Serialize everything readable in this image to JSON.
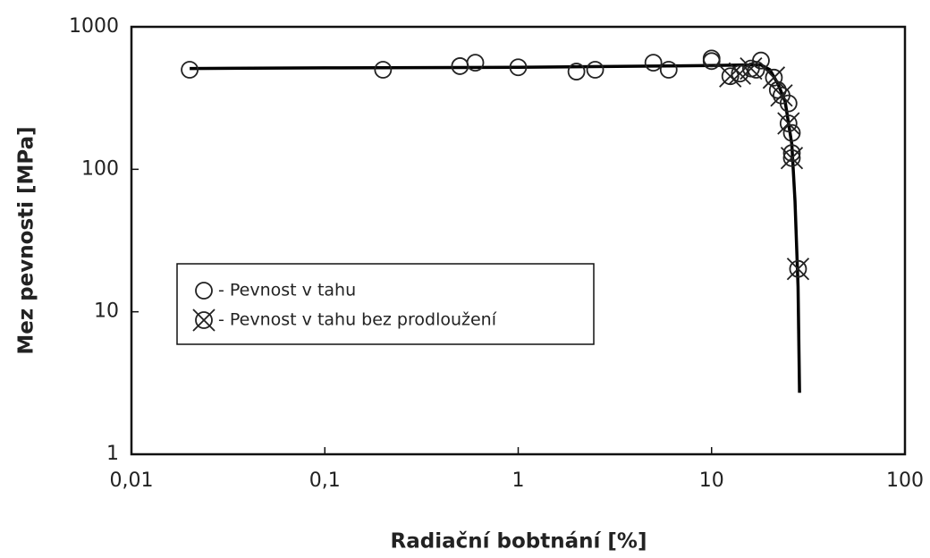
{
  "chart_data": {
    "type": "scatter",
    "xlabel": "Radiační bobtnání [%]",
    "ylabel": "Mez pevnosti [MPa]",
    "xscale": "log",
    "yscale": "log",
    "xlim": [
      0.01,
      100
    ],
    "ylim": [
      1,
      1000
    ],
    "xticks": [
      {
        "value": 0.01,
        "label": "0,01"
      },
      {
        "value": 0.1,
        "label": "0,1"
      },
      1,
      10,
      100
    ],
    "yticks": [
      1,
      10,
      100,
      1000
    ],
    "legend": "center-left",
    "series": [
      {
        "name": "- Pevnost v tahu",
        "marker": "circle",
        "color": "#222",
        "x": [
          0.02,
          0.2,
          0.5,
          0.6,
          1,
          2,
          2.5,
          5,
          6,
          10,
          10,
          17,
          18,
          22,
          25,
          26,
          26
        ],
        "values": [
          500,
          500,
          530,
          560,
          520,
          485,
          500,
          560,
          500,
          575,
          600,
          500,
          580,
          360,
          290,
          180,
          130
        ]
      },
      {
        "name": "- Pevnost v tahu bez prodloužení",
        "marker": "crossed-circle",
        "color": "#222",
        "x": [
          12.5,
          14,
          16,
          21,
          23,
          25,
          26,
          28
        ],
        "values": [
          450,
          470,
          510,
          440,
          330,
          210,
          120,
          20
        ]
      },
      {
        "marker": "none",
        "color": "#000",
        "x": [
          0.02,
          0.1,
          1,
          5,
          10,
          15,
          18,
          20,
          22,
          24,
          26,
          27,
          28,
          28.5
        ],
        "values": [
          510,
          515,
          520,
          530,
          535,
          540,
          540,
          500,
          400,
          300,
          150,
          60,
          15,
          2.7
        ]
      }
    ]
  }
}
